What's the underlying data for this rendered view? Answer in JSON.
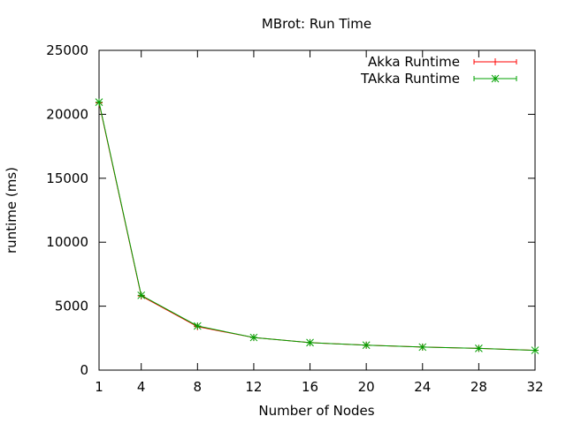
{
  "chart_data": {
    "type": "line",
    "title": "MBrot: Run Time",
    "xlabel": "Number of Nodes",
    "ylabel": "runtime (ms)",
    "xlim": [
      1,
      32
    ],
    "ylim": [
      0,
      25000
    ],
    "x_ticks": [
      1,
      4,
      8,
      12,
      16,
      20,
      24,
      28,
      32
    ],
    "y_ticks": [
      0,
      5000,
      10000,
      15000,
      20000,
      25000
    ],
    "grid": false,
    "legend_position": "top-right",
    "x": [
      1,
      4,
      8,
      12,
      16,
      20,
      24,
      28,
      32
    ],
    "series": [
      {
        "name": "Akka Runtime",
        "color": "#ff0000",
        "marker": "plus",
        "values": [
          20900,
          5800,
          3400,
          2550,
          2150,
          1950,
          1800,
          1700,
          1550
        ]
      },
      {
        "name": "TAkka Runtime",
        "color": "#00a000",
        "marker": "star",
        "values": [
          20950,
          5850,
          3450,
          2550,
          2150,
          1950,
          1800,
          1700,
          1550
        ]
      }
    ]
  }
}
